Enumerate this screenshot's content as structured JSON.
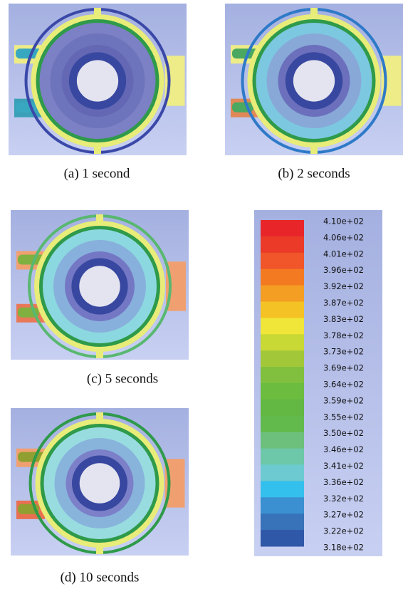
{
  "panels": [
    {
      "caption": "(a) 1 second"
    },
    {
      "caption": "(b) 2 seconds"
    },
    {
      "caption": "(c) 5 seconds"
    },
    {
      "caption": "(d) 10 seconds"
    }
  ],
  "colorbar": {
    "labels": [
      "4.10e+02",
      "4.06e+02",
      "4.01e+02",
      "3.96e+02",
      "3.92e+02",
      "3.87e+02",
      "3.83e+02",
      "3.78e+02",
      "3.73e+02",
      "3.69e+02",
      "3.64e+02",
      "3.59e+02",
      "3.55e+02",
      "3.50e+02",
      "3.46e+02",
      "3.41e+02",
      "3.36e+02",
      "3.32e+02",
      "3.27e+02",
      "3.22e+02",
      "3.18e+02"
    ],
    "colors": [
      "#e8262a",
      "#ec3a28",
      "#f0562a",
      "#f47a22",
      "#f49e24",
      "#f4c224",
      "#f0e63a",
      "#c8d834",
      "#a2c83a",
      "#80c03e",
      "#6cbc40",
      "#62b842",
      "#62ba4c",
      "#6cc07c",
      "#6cc8a8",
      "#6ccad0",
      "#34c0ec",
      "#3a90d0",
      "#3872b8",
      "#3058a8"
    ]
  }
}
